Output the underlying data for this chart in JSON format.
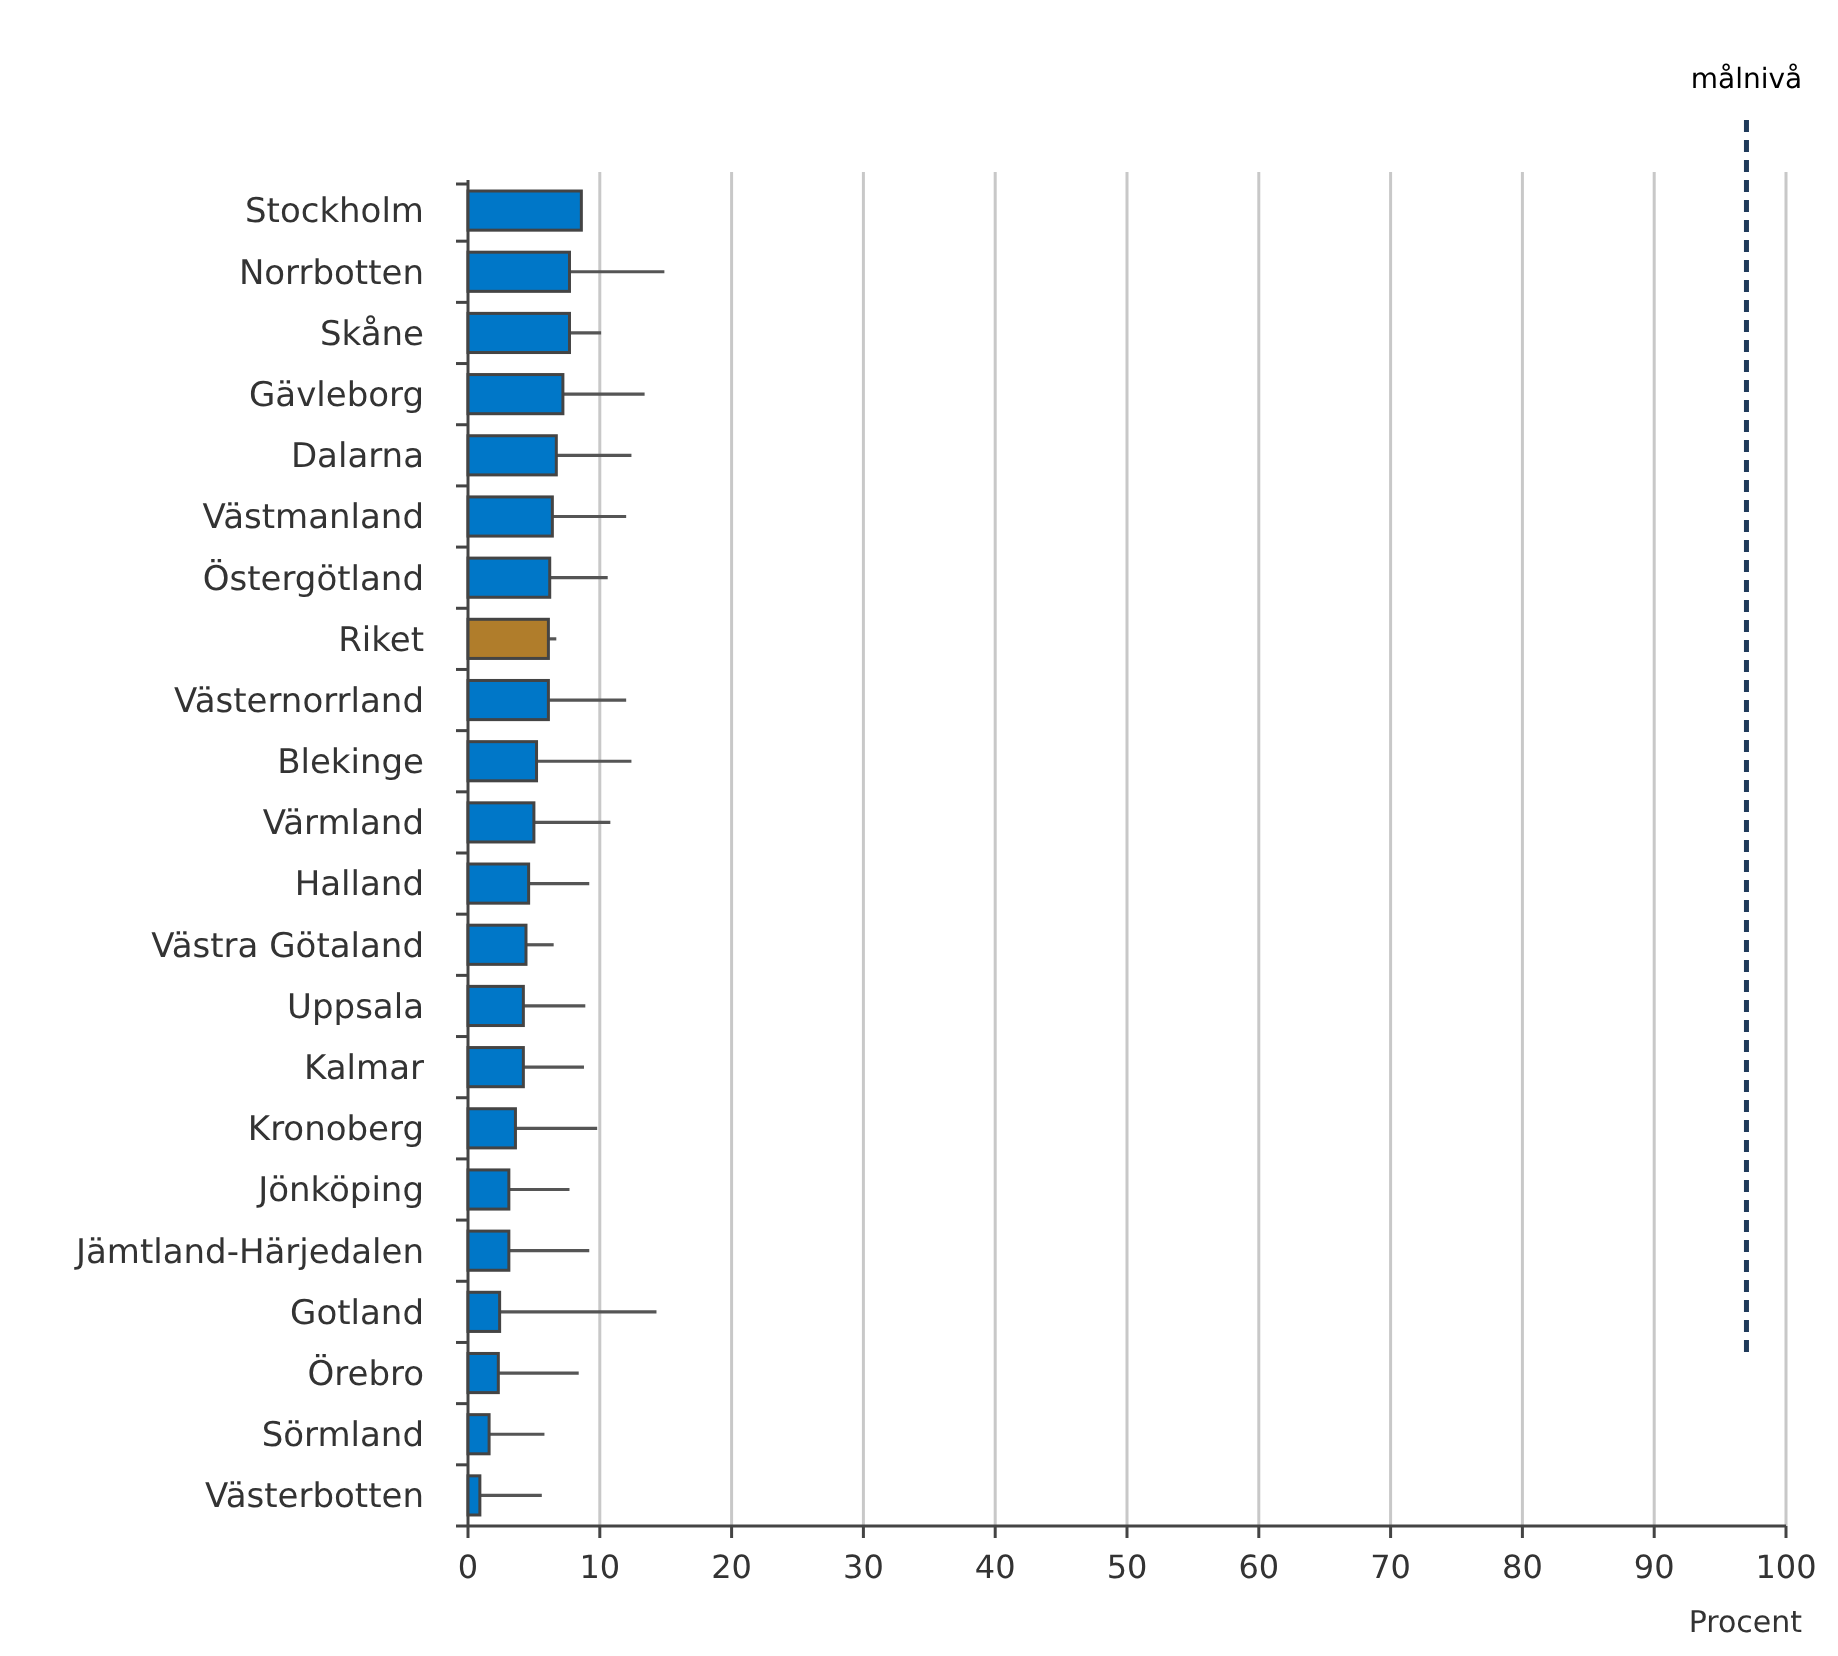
{
  "chart_data": {
    "type": "bar",
    "orientation": "horizontal",
    "xlabel": "Procent",
    "categories": [
      "Stockholm",
      "Norrbotten",
      "Skåne",
      "Gävleborg",
      "Dalarna",
      "Västmanland",
      "Östergötland",
      "Riket",
      "Västernorrland",
      "Blekinge",
      "Värmland",
      "Halland",
      "Västra Götaland",
      "Uppsala",
      "Kalmar",
      "Kronoberg",
      "Jönköping",
      "Jämtland-Härjedalen",
      "Gotland",
      "Örebro",
      "Sörmland",
      "Västerbotten"
    ],
    "values": [
      8.6,
      7.7,
      7.7,
      7.2,
      6.7,
      6.4,
      6.2,
      6.1,
      6.1,
      5.2,
      5.0,
      4.6,
      4.4,
      4.2,
      4.2,
      3.6,
      3.1,
      3.1,
      2.4,
      2.3,
      1.6,
      0.9
    ],
    "errors": [
      null,
      [
        7.7,
        14.9
      ],
      [
        7.7,
        10.1
      ],
      [
        7.2,
        13.4
      ],
      [
        6.7,
        12.4
      ],
      [
        6.4,
        12.0
      ],
      [
        6.2,
        10.6
      ],
      [
        6.1,
        6.7
      ],
      [
        6.1,
        12.0
      ],
      [
        5.2,
        12.4
      ],
      [
        5.0,
        10.8
      ],
      [
        4.6,
        9.2
      ],
      [
        4.4,
        6.5
      ],
      [
        4.2,
        8.9
      ],
      [
        4.2,
        8.8
      ],
      [
        3.6,
        9.8
      ],
      [
        3.1,
        7.7
      ],
      [
        3.1,
        9.2
      ],
      [
        2.4,
        14.3
      ],
      [
        2.3,
        8.4
      ],
      [
        1.6,
        5.8
      ],
      [
        0.9,
        5.6
      ]
    ],
    "colors": [
      "#0077c8",
      "#0077c8",
      "#0077c8",
      "#0077c8",
      "#0077c8",
      "#0077c8",
      "#0077c8",
      "#b07d2b",
      "#0077c8",
      "#0077c8",
      "#0077c8",
      "#0077c8",
      "#0077c8",
      "#0077c8",
      "#0077c8",
      "#0077c8",
      "#0077c8",
      "#0077c8",
      "#0077c8",
      "#0077c8",
      "#0077c8",
      "#0077c8"
    ],
    "xlim": [
      0,
      100
    ],
    "xticks": [
      0,
      10,
      20,
      30,
      40,
      50,
      60,
      70,
      80,
      90,
      100
    ],
    "grid": "x",
    "ref_lines": [
      {
        "axis": "x",
        "value": 97,
        "label": "målnivå",
        "color": "#1f3a5a",
        "line_style": "dashed"
      }
    ]
  }
}
